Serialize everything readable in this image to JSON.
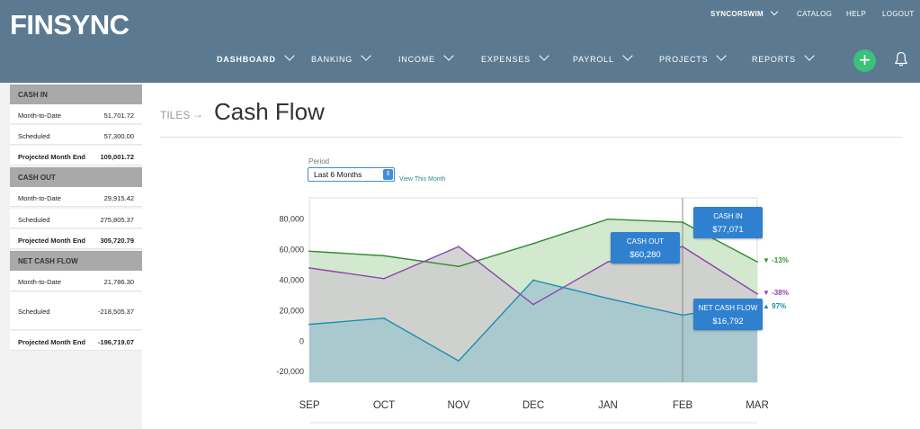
{
  "app": {
    "logo": "FINSYNC"
  },
  "utility": {
    "user": "SYNCORSWIM",
    "catalog": "CATALOG",
    "help": "HELP",
    "logout": "LOGOUT"
  },
  "nav": [
    {
      "label": "DASHBOARD",
      "active": true
    },
    {
      "label": "BANKING"
    },
    {
      "label": "INCOME"
    },
    {
      "label": "EXPENSES"
    },
    {
      "label": "PAYROLL"
    },
    {
      "label": "PROJECTS"
    },
    {
      "label": "REPORTS"
    }
  ],
  "add_icon": "plus-icon",
  "bell_icon": "bell-icon",
  "sidebar": {
    "cash_in": {
      "title": "CASH IN",
      "rows": [
        {
          "label": "Month-to-Date",
          "value": "51,701.72"
        },
        {
          "label": "Scheduled",
          "value": "57,300.00"
        },
        {
          "label": "Projected Month End",
          "value": "109,001.72"
        }
      ]
    },
    "cash_out": {
      "title": "CASH OUT",
      "rows": [
        {
          "label": "Month-to-Date",
          "value": "29,915.42"
        },
        {
          "label": "Scheduled",
          "value": "275,805.37"
        },
        {
          "label": "Projected Month End",
          "value": "305,720.79"
        }
      ]
    },
    "net": {
      "title": "NET CASH FLOW",
      "rows": [
        {
          "label": "Month-to-Date",
          "value": "21,786.30"
        },
        {
          "label": "Scheduled",
          "value": "-218,505.37"
        },
        {
          "label": "Projected Month End",
          "value": "-196,719.07"
        }
      ]
    }
  },
  "page": {
    "breadcrumb": "TILES",
    "arrow": "→",
    "title": "Cash Flow"
  },
  "period": {
    "label": "Period",
    "selected": "Last 6 Months",
    "view_link": "View This Month"
  },
  "callouts": {
    "cash_in": {
      "label": "CASH IN",
      "value": "$77,071"
    },
    "cash_out": {
      "label": "CASH OUT",
      "value": "$60,280"
    },
    "net": {
      "label": "NET CASH FLOW",
      "value": "$16,792"
    }
  },
  "deltas": {
    "cash_in": {
      "text": "▼ -13%",
      "color": "#2e9a2e"
    },
    "cash_out": {
      "text": "▼ -38%",
      "color": "#8e44ad"
    },
    "net": {
      "text": "▲ 97%",
      "color": "#1a8fb0"
    }
  },
  "chart_data": {
    "type": "area",
    "categories": [
      "SEP",
      "OCT",
      "NOV",
      "DEC",
      "JAN",
      "FEB",
      "MAR"
    ],
    "y_ticks": [
      "80,000",
      "60,000",
      "40,000",
      "20,000",
      "0",
      "-20,000"
    ],
    "y_tick_values": [
      80000,
      60000,
      40000,
      20000,
      0,
      -20000
    ],
    "ylim": [
      -27000,
      94000
    ],
    "series": [
      {
        "name": "CASH IN",
        "values": [
          59000,
          56000,
          49000,
          64000,
          80000,
          78000,
          52000
        ],
        "line": "#2e8b2e",
        "fill": "#d3e9cf"
      },
      {
        "name": "CASH OUT",
        "values": [
          48000,
          41000,
          62000,
          24000,
          52000,
          62000,
          31000
        ],
        "line": "#8e44ad",
        "fill": "#cccccc"
      },
      {
        "name": "NET CASH FLOW",
        "values": [
          11000,
          15000,
          -13000,
          40000,
          28000,
          17000,
          25000
        ],
        "line": "#1a8fb0",
        "fill": "#a3c8cf"
      }
    ],
    "highlight_category": "FEB"
  }
}
